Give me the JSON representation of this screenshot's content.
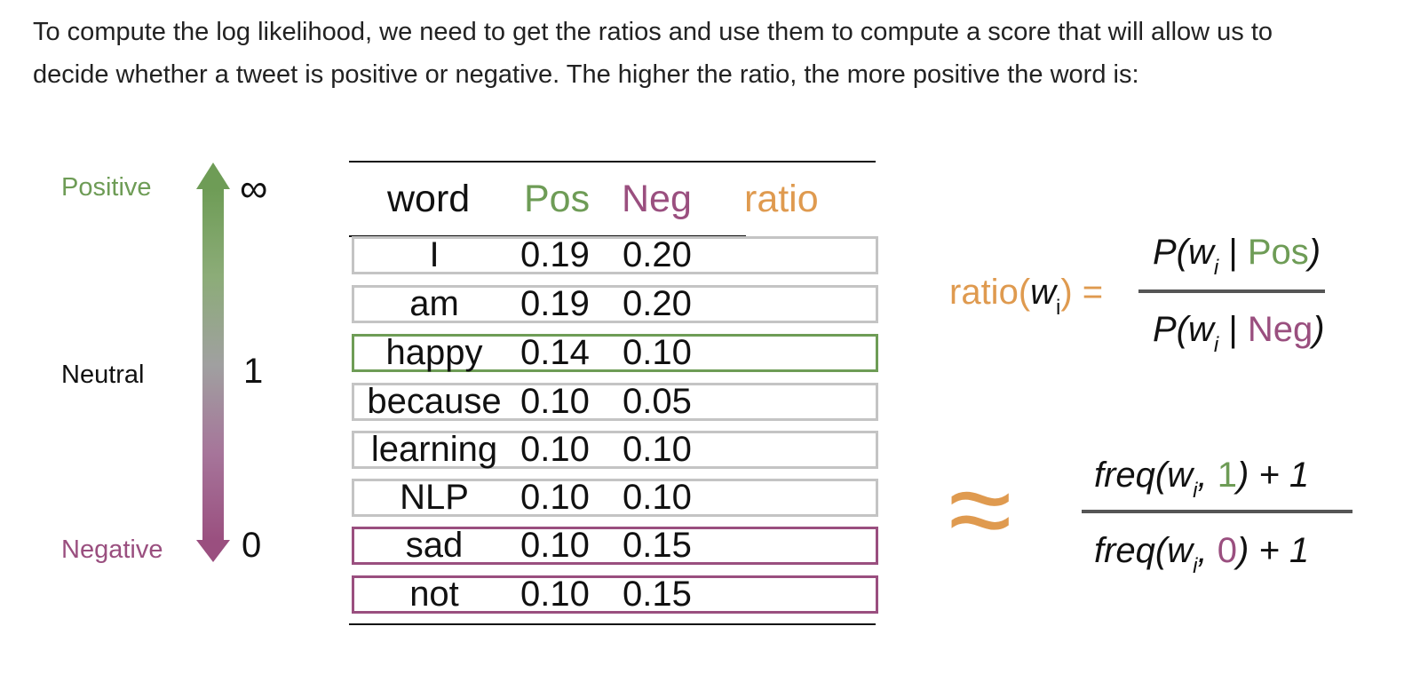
{
  "intro": {
    "line1": "To compute the log likelihood, we need to get the ratios and use them to compute a score that will allow us to",
    "line2": "decide whether a tweet is positive or negative. The higher the ratio, the more positive the word is:"
  },
  "scale": {
    "positive_label": "Positive",
    "neutral_label": "Neutral",
    "negative_label": "Negative",
    "top_value": "∞",
    "mid_value": "1",
    "bottom_value": "0"
  },
  "table": {
    "headers": {
      "word": "word",
      "pos": "Pos",
      "neg": "Neg",
      "ratio": "ratio"
    },
    "rows": [
      {
        "word": "I",
        "pos": "0.19",
        "neg": "0.20",
        "sentiment": "neutral"
      },
      {
        "word": "am",
        "pos": "0.19",
        "neg": "0.20",
        "sentiment": "neutral"
      },
      {
        "word": "happy",
        "pos": "0.14",
        "neg": "0.10",
        "sentiment": "positive"
      },
      {
        "word": "because",
        "pos": "0.10",
        "neg": "0.05",
        "sentiment": "neutral"
      },
      {
        "word": "learning",
        "pos": "0.10",
        "neg": "0.10",
        "sentiment": "neutral"
      },
      {
        "word": "NLP",
        "pos": "0.10",
        "neg": "0.10",
        "sentiment": "neutral"
      },
      {
        "word": "sad",
        "pos": "0.10",
        "neg": "0.15",
        "sentiment": "negative"
      },
      {
        "word": "not",
        "pos": "0.10",
        "neg": "0.15",
        "sentiment": "negative"
      }
    ]
  },
  "formula": {
    "ratio_label": "ratio(",
    "w": "w",
    "i": "i",
    "close_eq": ") =",
    "num_prefix": "P(w",
    "num_bar": " | ",
    "num_class": "Pos",
    "num_close": ")",
    "den_prefix": "P(w",
    "den_bar": " | ",
    "den_class": "Neg",
    "den_close": ")",
    "approx": "≈",
    "freq_num_prefix": "freq(w",
    "freq_num_comma": ", ",
    "freq_num_class": "1",
    "freq_num_suffix": ") + 1",
    "freq_den_prefix": "freq(w",
    "freq_den_comma": ", ",
    "freq_den_class": "0",
    "freq_den_suffix": ") + 1"
  },
  "colors": {
    "positive": "#6e9c56",
    "negative": "#9a4f7f",
    "ratio": "#df9a4f",
    "neutral_border": "#c4c4c4"
  }
}
